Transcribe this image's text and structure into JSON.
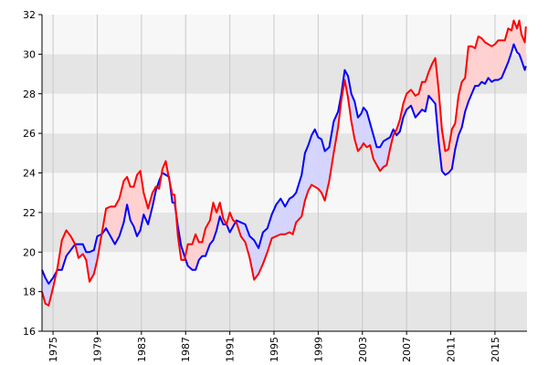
{
  "chart_data": {
    "type": "line",
    "title": "",
    "xlabel": "",
    "ylabel": "",
    "xlim": [
      1974,
      2015.8
    ],
    "ylim": [
      16,
      32
    ],
    "x_ticks": [
      "1975",
      "1979",
      "1983",
      "1987",
      "1991",
      "1995",
      "1999",
      "2003",
      "2007",
      "2011",
      "2015"
    ],
    "y_ticks": [
      "16",
      "18",
      "20",
      "22",
      "24",
      "26",
      "28",
      "30",
      "32"
    ],
    "grid": "alternating horizontal bands with vertical gridlines",
    "fill_between": {
      "red_above": "#ffd0d0",
      "blue_above": "#d4d4ff"
    },
    "series": [
      {
        "color": "#ff0000",
        "points": [
          [
            1974.0,
            18.0
          ],
          [
            1974.3,
            17.4
          ],
          [
            1974.6,
            17.3
          ],
          [
            1975.0,
            18.2
          ],
          [
            1975.4,
            19.2
          ],
          [
            1975.8,
            20.6
          ],
          [
            1976.2,
            21.1
          ],
          [
            1976.6,
            20.8
          ],
          [
            1977.0,
            20.4
          ],
          [
            1977.3,
            19.7
          ],
          [
            1977.7,
            19.9
          ],
          [
            1978.0,
            19.6
          ],
          [
            1978.3,
            18.5
          ],
          [
            1978.7,
            18.9
          ],
          [
            1979.0,
            19.6
          ],
          [
            1979.4,
            20.9
          ],
          [
            1979.8,
            22.2
          ],
          [
            1980.2,
            22.3
          ],
          [
            1980.6,
            22.3
          ],
          [
            1981.0,
            22.7
          ],
          [
            1981.4,
            23.6
          ],
          [
            1981.7,
            23.8
          ],
          [
            1982.0,
            23.3
          ],
          [
            1982.3,
            23.3
          ],
          [
            1982.6,
            23.9
          ],
          [
            1982.9,
            24.1
          ],
          [
            1983.2,
            23.0
          ],
          [
            1983.6,
            22.2
          ],
          [
            1984.0,
            23.0
          ],
          [
            1984.3,
            23.3
          ],
          [
            1984.6,
            23.2
          ],
          [
            1984.9,
            24.2
          ],
          [
            1985.2,
            24.6
          ],
          [
            1985.5,
            23.7
          ],
          [
            1985.8,
            22.9
          ],
          [
            1986.0,
            22.9
          ],
          [
            1986.3,
            20.8
          ],
          [
            1986.6,
            19.6
          ],
          [
            1986.9,
            19.6
          ],
          [
            1987.2,
            20.4
          ],
          [
            1987.6,
            20.4
          ],
          [
            1987.9,
            20.9
          ],
          [
            1988.2,
            20.5
          ],
          [
            1988.5,
            20.5
          ],
          [
            1988.8,
            21.2
          ],
          [
            1989.2,
            21.6
          ],
          [
            1989.5,
            22.5
          ],
          [
            1989.8,
            22.0
          ],
          [
            1990.1,
            22.5
          ],
          [
            1990.4,
            21.7
          ],
          [
            1990.7,
            21.4
          ],
          [
            1991.0,
            22.0
          ],
          [
            1991.3,
            21.6
          ],
          [
            1991.6,
            21.5
          ],
          [
            1992.0,
            20.8
          ],
          [
            1992.4,
            20.5
          ],
          [
            1992.8,
            19.7
          ],
          [
            1993.2,
            18.6
          ],
          [
            1993.6,
            18.9
          ],
          [
            1994.0,
            19.4
          ],
          [
            1994.4,
            20.0
          ],
          [
            1994.8,
            20.7
          ],
          [
            1995.2,
            20.8
          ],
          [
            1995.6,
            20.9
          ],
          [
            1996.0,
            20.9
          ],
          [
            1996.4,
            21.0
          ],
          [
            1996.7,
            20.9
          ],
          [
            1997.0,
            21.5
          ],
          [
            1997.5,
            21.8
          ],
          [
            1997.8,
            22.6
          ],
          [
            1998.1,
            23.1
          ],
          [
            1998.4,
            23.4
          ],
          [
            1998.7,
            23.3
          ],
          [
            1999.0,
            23.2
          ],
          [
            1999.3,
            23.0
          ],
          [
            1999.6,
            22.6
          ],
          [
            2000.0,
            23.6
          ],
          [
            2000.4,
            25.0
          ],
          [
            2000.8,
            26.3
          ],
          [
            2001.1,
            27.7
          ],
          [
            2001.4,
            28.7
          ],
          [
            2001.7,
            27.8
          ],
          [
            2002.0,
            26.6
          ],
          [
            2002.3,
            25.7
          ],
          [
            2002.6,
            25.1
          ],
          [
            2002.9,
            25.3
          ],
          [
            2003.1,
            25.5
          ],
          [
            2003.4,
            25.3
          ],
          [
            2003.7,
            25.4
          ],
          [
            2004.0,
            24.7
          ],
          [
            2004.3,
            24.4
          ],
          [
            2004.6,
            24.1
          ],
          [
            2004.9,
            24.3
          ],
          [
            2005.2,
            24.4
          ],
          [
            2005.5,
            25.2
          ],
          [
            2005.8,
            25.9
          ],
          [
            2006.1,
            26.2
          ],
          [
            2006.4,
            26.7
          ],
          [
            2006.7,
            27.5
          ],
          [
            2007.0,
            28.0
          ],
          [
            2007.4,
            28.2
          ],
          [
            2007.8,
            27.9
          ],
          [
            2008.1,
            28.0
          ],
          [
            2008.4,
            28.6
          ],
          [
            2008.7,
            28.6
          ],
          [
            2009.0,
            29.1
          ],
          [
            2009.3,
            29.5
          ],
          [
            2009.6,
            29.8
          ],
          [
            2009.9,
            28.2
          ],
          [
            2010.2,
            26.2
          ],
          [
            2010.5,
            25.1
          ],
          [
            2010.8,
            25.2
          ],
          [
            2011.1,
            26.2
          ],
          [
            2011.4,
            26.5
          ],
          [
            2011.7,
            27.9
          ],
          [
            2012.0,
            28.6
          ],
          [
            2012.3,
            28.8
          ],
          [
            2012.6,
            30.4
          ],
          [
            2012.9,
            30.4
          ],
          [
            2013.2,
            30.3
          ],
          [
            2013.5,
            30.9
          ],
          [
            2013.8,
            30.8
          ],
          [
            2014.1,
            30.6
          ],
          [
            2014.4,
            30.5
          ],
          [
            2014.7,
            30.4
          ],
          [
            2015.0,
            30.5
          ],
          [
            2015.3,
            30.7
          ],
          [
            2015.6,
            30.7
          ],
          [
            2015.9,
            30.7
          ],
          [
            2016.2,
            31.3
          ],
          [
            2016.5,
            31.2
          ],
          [
            2016.7,
            31.7
          ],
          [
            2017.0,
            31.3
          ],
          [
            2017.2,
            31.7
          ],
          [
            2017.4,
            31.0
          ],
          [
            2017.7,
            30.6
          ],
          [
            2017.8,
            31.4
          ]
        ]
      },
      {
        "color": "#0000ff",
        "points": [
          [
            1974.0,
            19.1
          ],
          [
            1974.3,
            18.7
          ],
          [
            1974.6,
            18.4
          ],
          [
            1975.0,
            18.7
          ],
          [
            1975.4,
            19.1
          ],
          [
            1975.8,
            19.1
          ],
          [
            1976.2,
            19.8
          ],
          [
            1976.6,
            20.1
          ],
          [
            1977.0,
            20.4
          ],
          [
            1977.3,
            20.4
          ],
          [
            1977.7,
            20.4
          ],
          [
            1978.0,
            20.0
          ],
          [
            1978.3,
            20.0
          ],
          [
            1978.7,
            20.1
          ],
          [
            1979.0,
            20.8
          ],
          [
            1979.4,
            20.9
          ],
          [
            1979.8,
            21.2
          ],
          [
            1980.2,
            20.8
          ],
          [
            1980.6,
            20.4
          ],
          [
            1981.0,
            20.8
          ],
          [
            1981.4,
            21.5
          ],
          [
            1981.7,
            22.4
          ],
          [
            1982.0,
            21.6
          ],
          [
            1982.3,
            21.3
          ],
          [
            1982.6,
            20.8
          ],
          [
            1982.9,
            21.1
          ],
          [
            1983.2,
            21.9
          ],
          [
            1983.6,
            21.4
          ],
          [
            1984.0,
            22.3
          ],
          [
            1984.3,
            23.1
          ],
          [
            1984.6,
            23.6
          ],
          [
            1984.9,
            24.0
          ],
          [
            1985.2,
            23.9
          ],
          [
            1985.5,
            23.8
          ],
          [
            1985.8,
            22.5
          ],
          [
            1986.0,
            22.5
          ],
          [
            1986.3,
            21.3
          ],
          [
            1986.6,
            20.3
          ],
          [
            1986.9,
            19.8
          ],
          [
            1987.2,
            19.3
          ],
          [
            1987.6,
            19.1
          ],
          [
            1987.9,
            19.1
          ],
          [
            1988.2,
            19.6
          ],
          [
            1988.5,
            19.8
          ],
          [
            1988.8,
            19.8
          ],
          [
            1989.2,
            20.4
          ],
          [
            1989.5,
            20.6
          ],
          [
            1989.8,
            21.1
          ],
          [
            1990.1,
            21.8
          ],
          [
            1990.4,
            21.4
          ],
          [
            1990.7,
            21.4
          ],
          [
            1991.0,
            21.0
          ],
          [
            1991.3,
            21.3
          ],
          [
            1991.6,
            21.6
          ],
          [
            1992.0,
            21.5
          ],
          [
            1992.4,
            21.4
          ],
          [
            1992.8,
            20.8
          ],
          [
            1993.2,
            20.6
          ],
          [
            1993.6,
            20.2
          ],
          [
            1994.0,
            21.0
          ],
          [
            1994.4,
            21.2
          ],
          [
            1994.8,
            21.9
          ],
          [
            1995.2,
            22.4
          ],
          [
            1995.6,
            22.7
          ],
          [
            1996.0,
            22.3
          ],
          [
            1996.4,
            22.7
          ],
          [
            1996.7,
            22.8
          ],
          [
            1997.0,
            23.0
          ],
          [
            1997.5,
            23.9
          ],
          [
            1997.8,
            25.0
          ],
          [
            1998.1,
            25.4
          ],
          [
            1998.4,
            25.9
          ],
          [
            1998.7,
            26.2
          ],
          [
            1999.0,
            25.8
          ],
          [
            1999.3,
            25.7
          ],
          [
            1999.6,
            25.1
          ],
          [
            2000.0,
            25.3
          ],
          [
            2000.4,
            26.6
          ],
          [
            2000.8,
            27.1
          ],
          [
            2001.1,
            28.0
          ],
          [
            2001.4,
            29.2
          ],
          [
            2001.7,
            28.9
          ],
          [
            2002.0,
            28.0
          ],
          [
            2002.3,
            27.6
          ],
          [
            2002.6,
            26.8
          ],
          [
            2002.9,
            27.0
          ],
          [
            2003.1,
            27.3
          ],
          [
            2003.4,
            27.1
          ],
          [
            2003.7,
            26.5
          ],
          [
            2004.0,
            25.9
          ],
          [
            2004.3,
            25.3
          ],
          [
            2004.6,
            25.3
          ],
          [
            2004.9,
            25.6
          ],
          [
            2005.2,
            25.7
          ],
          [
            2005.5,
            25.8
          ],
          [
            2005.8,
            26.2
          ],
          [
            2006.1,
            25.9
          ],
          [
            2006.4,
            26.1
          ],
          [
            2006.7,
            26.8
          ],
          [
            2007.0,
            27.2
          ],
          [
            2007.4,
            27.4
          ],
          [
            2007.8,
            26.8
          ],
          [
            2008.1,
            27.0
          ],
          [
            2008.4,
            27.2
          ],
          [
            2008.7,
            27.1
          ],
          [
            2009.0,
            27.9
          ],
          [
            2009.3,
            27.7
          ],
          [
            2009.6,
            27.5
          ],
          [
            2009.9,
            25.6
          ],
          [
            2010.2,
            24.1
          ],
          [
            2010.5,
            23.9
          ],
          [
            2010.8,
            24.0
          ],
          [
            2011.1,
            24.2
          ],
          [
            2011.4,
            25.2
          ],
          [
            2011.7,
            25.9
          ],
          [
            2012.0,
            26.3
          ],
          [
            2012.3,
            27.1
          ],
          [
            2012.6,
            27.6
          ],
          [
            2012.9,
            28.0
          ],
          [
            2013.2,
            28.4
          ],
          [
            2013.5,
            28.4
          ],
          [
            2013.8,
            28.6
          ],
          [
            2014.1,
            28.5
          ],
          [
            2014.4,
            28.8
          ],
          [
            2014.7,
            28.6
          ],
          [
            2015.0,
            28.7
          ],
          [
            2015.3,
            28.7
          ],
          [
            2015.6,
            28.8
          ],
          [
            2015.9,
            29.2
          ],
          [
            2016.2,
            29.6
          ],
          [
            2016.5,
            30.1
          ],
          [
            2016.7,
            30.5
          ],
          [
            2017.0,
            30.1
          ],
          [
            2017.2,
            30.0
          ],
          [
            2017.4,
            29.7
          ],
          [
            2017.7,
            29.2
          ],
          [
            2017.8,
            29.4
          ]
        ]
      }
    ]
  }
}
